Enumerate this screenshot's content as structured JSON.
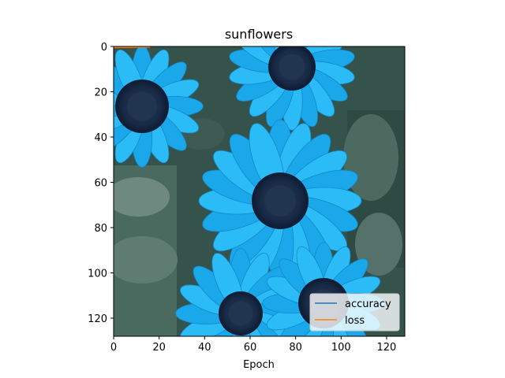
{
  "chart_data": {
    "type": "line",
    "title": "sunflowers",
    "xlabel": "Epoch",
    "ylabel": "",
    "xlim": [
      0,
      128
    ],
    "ylim": [
      128,
      0
    ],
    "x_ticks": [
      0,
      20,
      40,
      60,
      80,
      100,
      120
    ],
    "y_ticks": [
      0,
      20,
      40,
      60,
      80,
      100,
      120
    ],
    "grid": false,
    "legend_position": "lower-right",
    "background": "image of blue-tinted sunflowers with dark green foliage",
    "series": [
      {
        "name": "accuracy",
        "color": "#1f77b4",
        "x": [],
        "y": []
      },
      {
        "name": "loss",
        "color": "#ff7f0e",
        "x": [
          0,
          16
        ],
        "y": [
          0.5,
          0.3
        ]
      }
    ]
  }
}
